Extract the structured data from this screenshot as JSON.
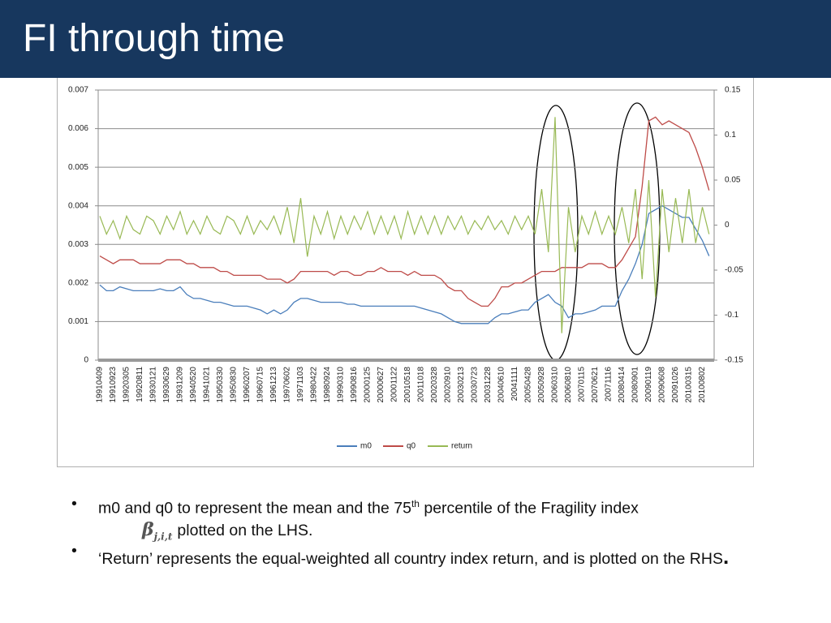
{
  "header": {
    "title": "FI through time"
  },
  "chart_data": {
    "type": "line",
    "categories": [
      "19910409",
      null,
      "19910923",
      null,
      "19920305",
      null,
      "19920811",
      null,
      "19930121",
      null,
      "19930629",
      null,
      "19931209",
      null,
      "19940520",
      null,
      "19941021",
      null,
      "19950330",
      null,
      "19950830",
      null,
      "19960207",
      null,
      "19960715",
      null,
      "19961213",
      null,
      "19970602",
      null,
      "19971103",
      null,
      "19980422",
      null,
      "19980924",
      null,
      "19990310",
      null,
      "19990816",
      null,
      "20000125",
      null,
      "20000627",
      null,
      "20001122",
      null,
      "20010518",
      null,
      "20011018",
      null,
      "20020328",
      null,
      "20020910",
      null,
      "20030213",
      null,
      "20030723",
      null,
      "20031228",
      null,
      "20040610",
      null,
      "20041111",
      null,
      "20050428",
      null,
      "20050928",
      null,
      "20060310",
      null,
      "20060810",
      null,
      "20070115",
      null,
      "20070621",
      null,
      "20071116",
      null,
      "20080414",
      null,
      "20080901",
      null,
      "20090119",
      null,
      "20090608",
      null,
      "20091026",
      null,
      "20100315",
      null,
      "20100802",
      null
    ],
    "series": [
      {
        "name": "m0",
        "color": "#4a7ebb",
        "values": [
          0.00195,
          0.0018,
          0.0018,
          0.0019,
          0.00185,
          0.0018,
          0.0018,
          0.0018,
          0.0018,
          0.00185,
          0.0018,
          0.0018,
          0.0019,
          0.0017,
          0.0016,
          0.0016,
          0.00155,
          0.0015,
          0.0015,
          0.00145,
          0.0014,
          0.0014,
          0.0014,
          0.00135,
          0.0013,
          0.0012,
          0.0013,
          0.0012,
          0.0013,
          0.0015,
          0.0016,
          0.0016,
          0.00155,
          0.0015,
          0.0015,
          0.0015,
          0.0015,
          0.00145,
          0.00145,
          0.0014,
          0.0014,
          0.0014,
          0.0014,
          0.0014,
          0.0014,
          0.0014,
          0.0014,
          0.0014,
          0.00135,
          0.0013,
          0.00125,
          0.0012,
          0.0011,
          0.001,
          0.00095,
          0.00095,
          0.00095,
          0.00095,
          0.00095,
          0.0011,
          0.0012,
          0.0012,
          0.00125,
          0.0013,
          0.0013,
          0.0015,
          0.0016,
          0.0017,
          0.0015,
          0.0014,
          0.0011,
          0.0012,
          0.0012,
          0.00125,
          0.0013,
          0.0014,
          0.0014,
          0.0014,
          0.0018,
          0.0021,
          0.0025,
          0.003,
          0.0038,
          0.0039,
          0.004,
          0.0039,
          0.0038,
          0.0037,
          0.0037,
          0.0034,
          0.0031,
          0.0027
        ]
      },
      {
        "name": "q0",
        "color": "#be4b48",
        "values": [
          0.0027,
          0.0026,
          0.0025,
          0.0026,
          0.0026,
          0.0026,
          0.0025,
          0.0025,
          0.0025,
          0.0025,
          0.0026,
          0.0026,
          0.0026,
          0.0025,
          0.0025,
          0.0024,
          0.0024,
          0.0024,
          0.0023,
          0.0023,
          0.0022,
          0.0022,
          0.0022,
          0.0022,
          0.0022,
          0.0021,
          0.0021,
          0.0021,
          0.002,
          0.0021,
          0.0023,
          0.0023,
          0.0023,
          0.0023,
          0.0023,
          0.0022,
          0.0023,
          0.0023,
          0.0022,
          0.0022,
          0.0023,
          0.0023,
          0.0024,
          0.0023,
          0.0023,
          0.0023,
          0.0022,
          0.0023,
          0.0022,
          0.0022,
          0.0022,
          0.0021,
          0.0019,
          0.0018,
          0.0018,
          0.0016,
          0.0015,
          0.0014,
          0.0014,
          0.0016,
          0.0019,
          0.0019,
          0.002,
          0.002,
          0.0021,
          0.0022,
          0.0023,
          0.0023,
          0.0023,
          0.0024,
          0.0024,
          0.0024,
          0.0024,
          0.0025,
          0.0025,
          0.0025,
          0.0024,
          0.0024,
          0.0026,
          0.0029,
          0.0032,
          0.0045,
          0.0062,
          0.0063,
          0.0061,
          0.0062,
          0.0061,
          0.006,
          0.0059,
          0.0055,
          0.005,
          0.0044
        ]
      },
      {
        "name": "return",
        "color": "#98b954",
        "axis": "y2",
        "values": [
          0.01,
          -0.01,
          0.005,
          -0.015,
          0.01,
          -0.005,
          -0.01,
          0.01,
          0.005,
          -0.01,
          0.01,
          -0.005,
          0.015,
          -0.01,
          0.005,
          -0.01,
          0.01,
          -0.005,
          -0.01,
          0.01,
          0.005,
          -0.01,
          0.01,
          -0.01,
          0.005,
          -0.005,
          0.01,
          -0.01,
          0.02,
          -0.02,
          0.03,
          -0.035,
          0.01,
          -0.01,
          0.015,
          -0.015,
          0.01,
          -0.01,
          0.01,
          -0.005,
          0.015,
          -0.01,
          0.01,
          -0.01,
          0.01,
          -0.015,
          0.015,
          -0.01,
          0.01,
          -0.01,
          0.01,
          -0.01,
          0.01,
          -0.005,
          0.01,
          -0.01,
          0.005,
          -0.005,
          0.01,
          -0.005,
          0.005,
          -0.01,
          0.01,
          -0.005,
          0.01,
          -0.01,
          0.04,
          -0.03,
          0.12,
          -0.12,
          0.02,
          -0.03,
          0.01,
          -0.01,
          0.015,
          -0.01,
          0.01,
          -0.01,
          0.02,
          -0.02,
          0.04,
          -0.06,
          0.05,
          -0.08,
          0.04,
          -0.03,
          0.03,
          -0.02,
          0.04,
          -0.02,
          0.02,
          -0.01
        ]
      }
    ],
    "ylim": [
      0,
      0.007
    ],
    "yticks": [
      0,
      0.001,
      0.002,
      0.003,
      0.004,
      0.005,
      0.006,
      0.007
    ],
    "y2lim": [
      -0.15,
      0.15
    ],
    "y2ticks": [
      -0.15,
      -0.1,
      -0.05,
      0,
      0.05,
      0.1,
      0.15
    ],
    "grid": true,
    "legend": "bottom"
  },
  "bullets": [
    [
      "m0 and q0 to represent the mean and the 75",
      "th",
      " percentile of the Fragility index",
      "β",
      "j,i,t",
      "plotted on the LHS."
    ],
    [
      "‘Return’ represents the equal-weighted all country index return, and is plotted on the RHS",
      "."
    ]
  ]
}
